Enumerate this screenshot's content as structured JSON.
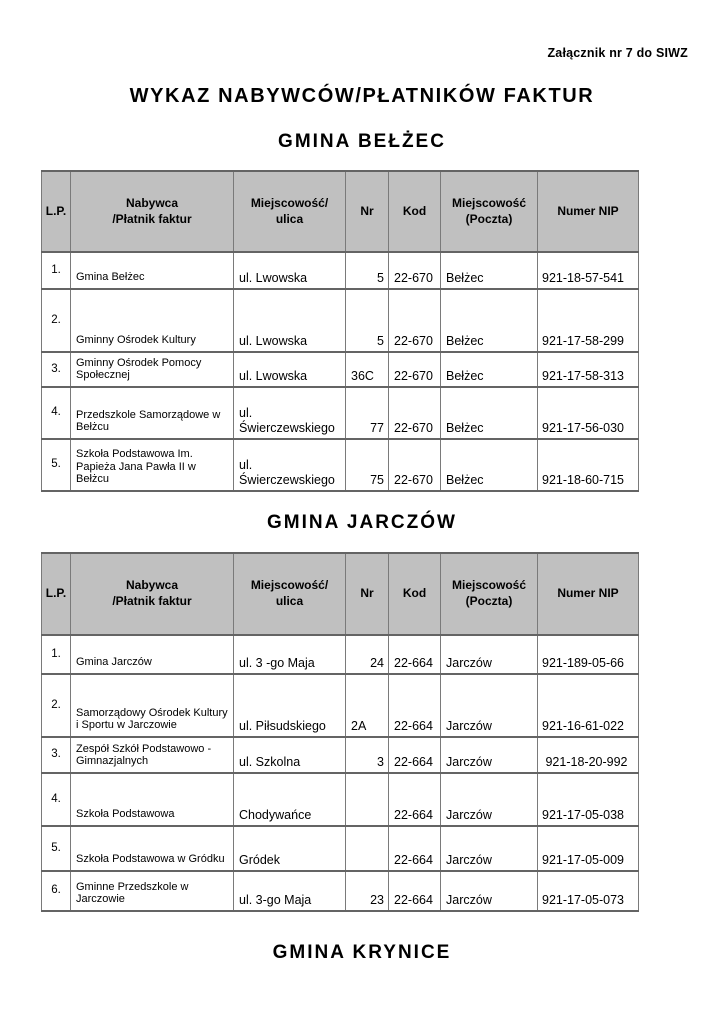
{
  "doc": {
    "attachment_note": "Załącznik nr 7 do SIWZ",
    "title": "WYKAZ NABYWCÓW/PŁATNIKÓW FAKTUR"
  },
  "colors": {
    "table_header_bg": "#c0c0c0",
    "table_border": "#6e6e6e",
    "text": "#000000"
  },
  "header": {
    "lp": "L.P.",
    "buyer_line1": "Nabywca",
    "buyer_line2": "/Płatnik faktur",
    "street_line1": "Miejscowość/",
    "street_line2": "ulica",
    "nr": "Nr",
    "kod": "Kod",
    "post_line1": "Miejscowość",
    "post_line2": "(Poczta)",
    "nip": "Numer NIP"
  },
  "sections": {
    "belzec": {
      "title": "GMINA BEŁŻEC",
      "rows": [
        {
          "lp": "1.",
          "buyer": "Gmina Bełżec",
          "street": "ul. Lwowska",
          "nr": "5",
          "kod": "22-670",
          "post": "Bełżec",
          "nip": "921-18-57-541"
        },
        {
          "lp": "2.",
          "buyer": "Gminny Ośrodek Kultury",
          "street": "ul. Lwowska",
          "nr": "5",
          "kod": "22-670",
          "post": "Bełżec",
          "nip": "921-17-58-299"
        },
        {
          "lp": "3.",
          "buyer": "Gminny Ośrodek Pomocy Społecznej",
          "street": "ul. Lwowska",
          "nr": "36C",
          "kod": "22-670",
          "post": "Bełżec",
          "nip": "921-17-58-313"
        },
        {
          "lp": "4.",
          "buyer": "Przedszkole Samorządowe w Bełżcu",
          "street": "ul. Świerczewskiego",
          "nr": "77",
          "kod": "22-670",
          "post": "Bełżec",
          "nip": "921-17-56-030"
        },
        {
          "lp": "5.",
          "buyer": "Szkoła Podstawowa Im. Papieża Jana Pawła II w Bełżcu",
          "street": "ul. Świerczewskiego",
          "nr": "75",
          "kod": "22-670",
          "post": "Bełżec",
          "nip": "921-18-60-715"
        }
      ]
    },
    "jarczow": {
      "title": "GMINA JARCZÓW",
      "rows": [
        {
          "lp": "1.",
          "buyer": "Gmina Jarczów",
          "street": "ul. 3 -go Maja",
          "nr": "24",
          "kod": "22-664",
          "post": "Jarczów",
          "nip": "921-189-05-66"
        },
        {
          "lp": "2.",
          "buyer": "Samorządowy Ośrodek Kultury i Sportu w Jarczowie",
          "street": "ul. Piłsudskiego",
          "nr": "2A",
          "kod": "22-664",
          "post": "Jarczów",
          "nip": "921-16-61-022"
        },
        {
          "lp": "3.",
          "buyer": "Zespół Szkół Podstawowo - Gimnazjalnych",
          "street": "ul. Szkolna",
          "nr": "3",
          "kod": "22-664",
          "post": "Jarczów",
          "nip": " 921-18-20-992"
        },
        {
          "lp": "4.",
          "buyer": "Szkoła Podstawowa",
          "street": "Chodywańce",
          "nr": "",
          "kod": "22-664",
          "post": "Jarczów",
          "nip": "921-17-05-038"
        },
        {
          "lp": "5.",
          "buyer": "Szkoła Podstawowa w Gródku",
          "street": "Gródek",
          "nr": "",
          "kod": "22-664",
          "post": "Jarczów",
          "nip": "921-17-05-009"
        },
        {
          "lp": "6.",
          "buyer": "Gminne Przedszkole w Jarczowie",
          "street": "ul. 3-go Maja",
          "nr": "23",
          "kod": "22-664",
          "post": "Jarczów",
          "nip": "921-17-05-073"
        }
      ]
    },
    "krynice": {
      "title": "GMINA KRYNICE"
    }
  }
}
